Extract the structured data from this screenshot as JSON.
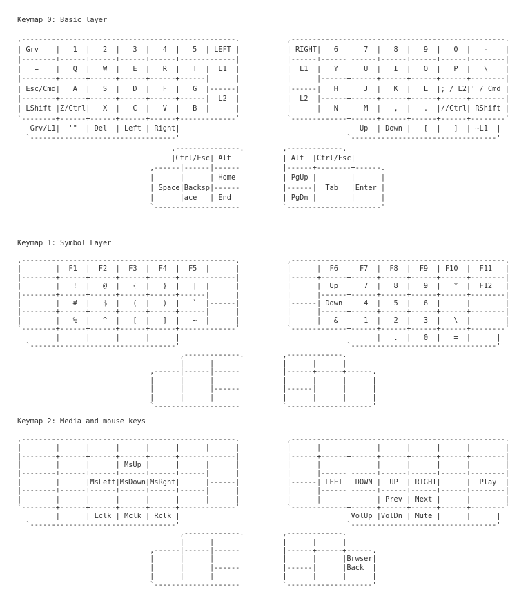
{
  "page": {
    "background_color": "#ffffff",
    "text_color": "#333333"
  },
  "keymaps": [
    {
      "title": "Keymap 0: Basic layer",
      "art": [
        ",--------------------------------------------------.           ,--------------------------------------------------.",
        "| Grv    |   1  |   2  |   3  |   4  |   5  | LEFT |           | RIGHT|   6  |   7  |   8  |   9  |   0  |   -    |",
        "|--------+------+------+------+------+-------------|           |------+------+------+------+------+------+--------|",
        "|   =    |   Q  |   W  |   E  |   R  |   T  |  L1  |           |  L1  |   Y  |   U  |   I  |   O  |   P  |   \\    |",
        "|--------+------+------+------+------+------|      |           |      |------+------+------+------+------+--------|",
        "| Esc/Cmd|   A  |   S  |   D  |   F  |   G  |------|           |------|   H  |   J  |   K  |   L  |; / L2|' / Cmd |",
        "|--------+------+------+------+------+------|  L2  |           |  L2  |------+------+------+------+------+--------|",
        "| LShift |Z/Ctrl|   X  |   C  |   V  |   B  |      |           |      |   N  |   M  |   ,  |   .  |//Ctrl| RShift |",
        "`--------+------+------+------+------+-------------'           `-------------+------+------+------+------+--------'",
        "  |Grv/L1|  '\"  | Del  | Left | Right|                                       |  Up  | Down |   [  |   ]  | ~L1  |",
        "  `----------------------------------'                                       `----------------------------------'",
        "                                    ,---------------.         ,-------------.",
        "                                    |Ctrl/Esc| Alt  |         | Alt  |Ctrl/Esc|",
        "                               ,------|------|------|         |------+--------+------.",
        "                               |      |      | Home |         | PgUp |        |      |",
        "                               | Space|Backsp|------|         |------|  Tab   |Enter |",
        "                               |      |ace   | End  |         | PgDn |        |      |",
        "                               `--------------------'         `----------------------'"
      ]
    },
    {
      "title": "Keymap 1: Symbol Layer",
      "art": [
        ",--------------------------------------------------.           ,--------------------------------------------------.",
        "|        |  F1  |  F2  |  F3  |  F4  |  F5  |      |           |      |  F6  |  F7  |  F8  |  F9  | F10  |  F11   |",
        "|--------+------+------+------+------+-------------|           |------+------+------+------+------+------+--------|",
        "|        |   !  |   @  |   {  |   }  |   |  |      |           |      |  Up  |   7  |   8  |   9  |   *  |  F12   |",
        "|--------+------+------+------+------+------|      |           |      |------+------+------+------+------+--------|",
        "|        |   #  |   $  |   (  |   )  |   `  |------|           |------| Down |   4  |   5  |   6  |   +  |        |",
        "|--------+------+------+------+------+------|      |           |      |------+------+------+------+------+--------|",
        "|        |   %  |   ^  |   [  |   ]  |   ~  |      |           |      |   &  |   1  |   2  |   3  |   \\  |        |",
        "`--------+------+------+------+------+-------------'           `-------------+------+------+------+------+--------'",
        "  |      |      |      |      |      |                                       |      |   .  |   0  |   =  |      |",
        "  `----------------------------------'                                       `----------------------------------'",
        "                                      ,-------------.         ,-------------.",
        "                                      |      |      |         |      |      |",
        "                               ,------|------|------|         |------+------+------.",
        "                               |      |      |      |         |      |      |      |",
        "                               |      |      |------|         |------|      |      |",
        "                               |      |      |      |         |      |      |      |",
        "                               `--------------------'         `--------------------'"
      ]
    },
    {
      "title": "Keymap 2: Media and mouse keys",
      "art": [
        ",--------------------------------------------------.           ,--------------------------------------------------.",
        "|        |      |      |      |      |      |      |           |      |      |      |      |      |      |        |",
        "|--------+------+------+------+------+-------------|           |------+------+------+------+------+------+--------|",
        "|        |      |      | MsUp |      |      |      |           |      |      |      |      |      |      |        |",
        "|--------+------+------+------+------+------|      |           |      |------+------+------+------+------+--------|",
        "|        |      |MsLeft|MsDown|MsRght|      |------|           |------| LEFT | DOWN |  UP  | RIGHT|      |  Play  |",
        "|--------+------+------+------+------+------|      |           |      |------+------+------+------+------+--------|",
        "|        |      |      |      |      |      |      |           |      |      |      | Prev | Next |      |        |",
        "`--------+------+------+------+------+-------------'           `-------------+------+------+------+------+--------'",
        "  |      |      | Lclk | Mclk | Rclk |                                       |VolUp |VolDn | Mute |      |      |",
        "  `----------------------------------'                                       `----------------------------------'",
        "                                      ,-------------.         ,-------------.",
        "                                      |      |      |         |      |      |",
        "                               ,------|------|------|         |------+------+------.",
        "                               |      |      |      |         |      |      |Brwser|",
        "                               |      |      |------|         |------|      |Back  |",
        "                               |      |      |      |         |      |      |      |",
        "                               `--------------------'         `--------------------'"
      ]
    }
  ]
}
